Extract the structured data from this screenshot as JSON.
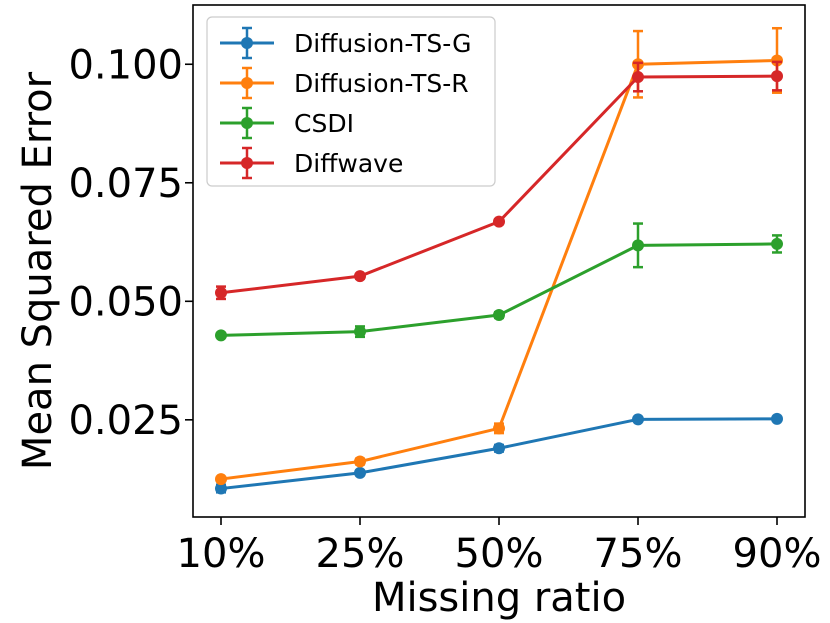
{
  "chart_data": {
    "type": "line",
    "title": "",
    "xlabel": "Missing ratio",
    "ylabel": "Mean Squared Error",
    "categories": [
      "10%",
      "25%",
      "50%",
      "75%",
      "90%"
    ],
    "y_ticks": [
      0.025,
      0.05,
      0.075,
      0.1
    ],
    "y_tick_labels": [
      "0.025",
      "0.050",
      "0.075",
      "0.100"
    ],
    "ylim": [
      0.0045,
      0.1125
    ],
    "grid": false,
    "legend_position": "top-left",
    "series": [
      {
        "name": "Diffusion-TS-G",
        "color": "#1f77b4",
        "values": [
          0.0105,
          0.0138,
          0.019,
          0.0251,
          0.0252
        ],
        "errors": [
          0.0008,
          0.0005,
          0.0007,
          0.0003,
          0.0003
        ]
      },
      {
        "name": "Diffusion-TS-R",
        "color": "#ff7f0e",
        "values": [
          0.0125,
          0.0162,
          0.0232,
          0.1,
          0.1008
        ],
        "errors": [
          0.0004,
          0.0006,
          0.001,
          0.007,
          0.0068
        ]
      },
      {
        "name": "CSDI",
        "color": "#2ca02c",
        "values": [
          0.0428,
          0.0436,
          0.0471,
          0.0618,
          0.0621
        ],
        "errors": [
          0.0003,
          0.0011,
          0.0006,
          0.0046,
          0.0018
        ]
      },
      {
        "name": "Diffwave",
        "color": "#d62728",
        "values": [
          0.0518,
          0.0553,
          0.0668,
          0.0973,
          0.0975
        ],
        "errors": [
          0.0013,
          0.0005,
          0.0005,
          0.003,
          0.003
        ]
      }
    ]
  }
}
